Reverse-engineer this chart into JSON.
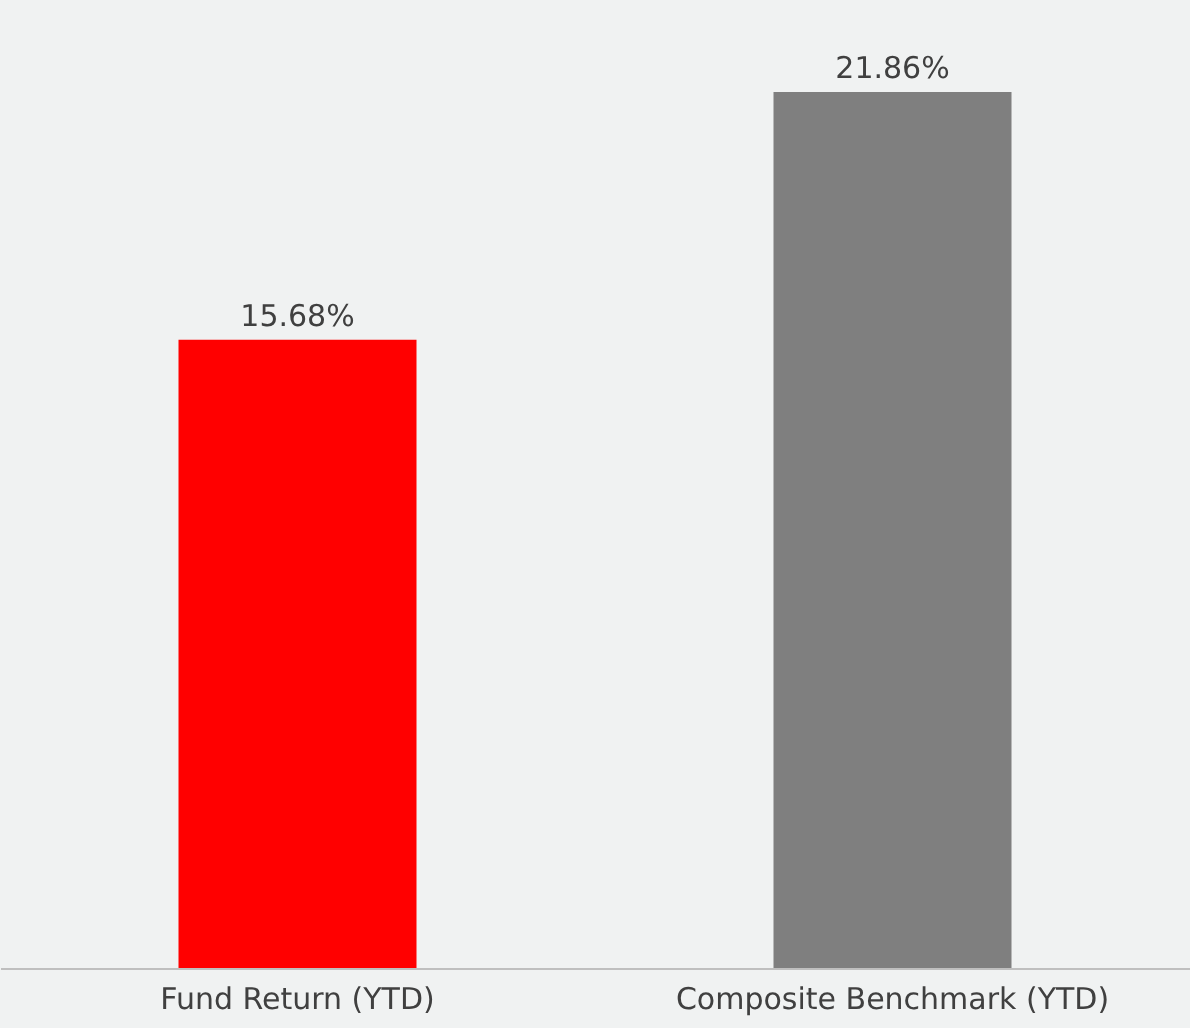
{
  "chart_data": {
    "type": "bar",
    "categories": [
      "Fund Return (YTD)",
      "Composite Benchmark (YTD)"
    ],
    "values": [
      15.68,
      21.86
    ],
    "colors": [
      "#ff0000",
      "#7f7f7f"
    ],
    "value_labels": [
      "15.68%",
      "21.86%"
    ],
    "grid": false
  }
}
